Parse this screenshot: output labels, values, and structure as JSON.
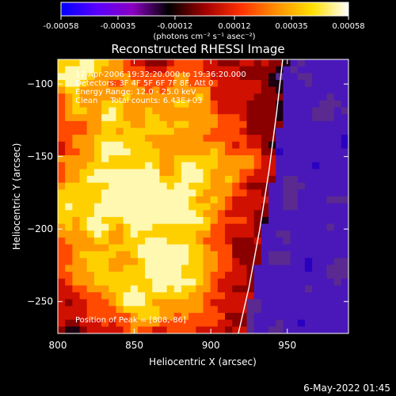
{
  "colorbar": {
    "ticks": [
      "-0.00058",
      "-0.00035",
      "-0.00012",
      "0.00012",
      "0.00035",
      "0.00058"
    ],
    "tick_values": [
      -0.00058,
      -0.00035,
      -0.00012,
      0.00012,
      0.00035,
      0.00058
    ],
    "range": [
      -0.00058,
      0.00058
    ],
    "units_label": "(photons cm⁻² s⁻¹ asec⁻²)",
    "colors": [
      "#0000ff",
      "#5a00ff",
      "#8a00c0",
      "#000000",
      "#a00000",
      "#ff3000",
      "#ff9000",
      "#ffe000",
      "#ffffff"
    ]
  },
  "chart_data": {
    "type": "heatmap",
    "title": "Reconstructed RHESSI Image",
    "xlabel": "Heliocentric X (arcsec)",
    "ylabel": "Heliocentric Y (arcsec)",
    "xlim": [
      800,
      990
    ],
    "ylim": [
      -272,
      -83
    ],
    "xticks": [
      800,
      850,
      900,
      950
    ],
    "xtick_labels": [
      "800",
      "850",
      "900",
      "950"
    ],
    "yticks": [
      -100,
      -150,
      -200,
      -250
    ],
    "ytick_labels": [
      "−100",
      "−150",
      "−200",
      "−250"
    ],
    "limb_curve_x": [
      947,
      943,
      938,
      932,
      925,
      918
    ],
    "limb_curve_y": [
      -83,
      -120,
      -160,
      -200,
      -240,
      -272
    ],
    "peak_x": 808,
    "peak_y": -86,
    "annotations": [
      "17-Apr-2006 19:32:20.000 to 19:36:20.000",
      "Detectors: 3F 4F 5F 6F 7F 8F, Att 0",
      "Energy Range: 12.0 - 25.0 keV",
      "Clean     Total counts: 6.43E+03",
      "Position of Peak = [808,-86]"
    ],
    "grid": false
  },
  "timestamp": "6-May-2022 01:45"
}
